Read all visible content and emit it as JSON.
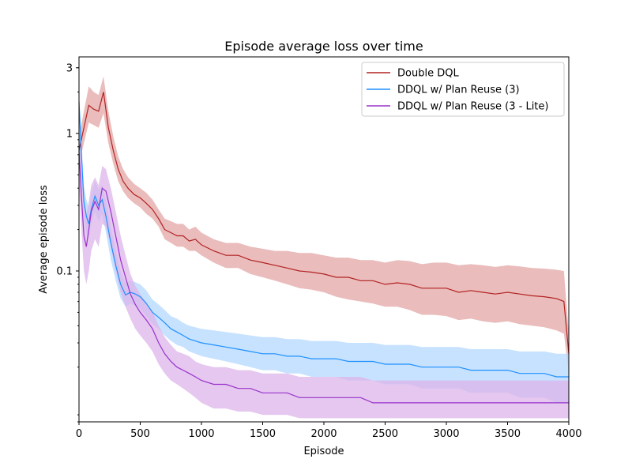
{
  "chart_data": {
    "type": "line",
    "title": "Episode average loss over time",
    "xlabel": "Episode",
    "ylabel": "Average episode loss",
    "xlim": [
      0,
      4000
    ],
    "ylim": [
      0.008,
      3.6
    ],
    "yscale": "log",
    "xticks": [
      0,
      500,
      1000,
      1500,
      2000,
      2500,
      3000,
      3500,
      4000
    ],
    "yticks": [
      {
        "value": 0.1,
        "label": "0.1"
      },
      {
        "value": 1,
        "label": "1"
      },
      {
        "value": 3,
        "label": "3"
      }
    ],
    "grid": false,
    "legend_position": "top-right",
    "series": [
      {
        "name": "Double DQL",
        "color": "#b22222",
        "band_color": "#e3a5a5",
        "x": [
          0,
          40,
          80,
          120,
          160,
          200,
          240,
          280,
          320,
          360,
          400,
          450,
          500,
          550,
          600,
          650,
          700,
          750,
          800,
          850,
          900,
          950,
          1000,
          1100,
          1200,
          1300,
          1400,
          1500,
          1600,
          1700,
          1800,
          1900,
          2000,
          2100,
          2200,
          2300,
          2400,
          2500,
          2600,
          2700,
          2800,
          2900,
          3000,
          3100,
          3200,
          3300,
          3400,
          3500,
          3600,
          3700,
          3800,
          3900,
          3960,
          4000
        ],
        "y": [
          0.75,
          1.1,
          1.6,
          1.5,
          1.45,
          2.0,
          1.1,
          0.75,
          0.55,
          0.45,
          0.4,
          0.36,
          0.34,
          0.31,
          0.28,
          0.24,
          0.2,
          0.19,
          0.18,
          0.18,
          0.165,
          0.17,
          0.155,
          0.14,
          0.13,
          0.13,
          0.12,
          0.115,
          0.11,
          0.105,
          0.1,
          0.098,
          0.095,
          0.09,
          0.09,
          0.085,
          0.085,
          0.08,
          0.082,
          0.08,
          0.075,
          0.075,
          0.075,
          0.07,
          0.072,
          0.07,
          0.068,
          0.07,
          0.068,
          0.066,
          0.065,
          0.063,
          0.06,
          0.025
        ],
        "low": [
          0.6,
          0.85,
          1.2,
          1.15,
          1.1,
          1.4,
          0.85,
          0.6,
          0.45,
          0.38,
          0.34,
          0.31,
          0.29,
          0.26,
          0.24,
          0.21,
          0.17,
          0.16,
          0.15,
          0.15,
          0.14,
          0.14,
          0.13,
          0.115,
          0.105,
          0.105,
          0.095,
          0.09,
          0.085,
          0.08,
          0.075,
          0.073,
          0.07,
          0.065,
          0.062,
          0.06,
          0.058,
          0.055,
          0.055,
          0.052,
          0.048,
          0.048,
          0.047,
          0.044,
          0.045,
          0.043,
          0.042,
          0.043,
          0.041,
          0.04,
          0.039,
          0.037,
          0.035,
          0.018
        ],
        "high": [
          0.95,
          1.45,
          2.2,
          2.0,
          1.9,
          2.6,
          1.45,
          0.95,
          0.68,
          0.55,
          0.48,
          0.43,
          0.4,
          0.37,
          0.33,
          0.28,
          0.24,
          0.23,
          0.22,
          0.22,
          0.2,
          0.21,
          0.19,
          0.17,
          0.16,
          0.16,
          0.15,
          0.145,
          0.14,
          0.14,
          0.135,
          0.135,
          0.13,
          0.125,
          0.125,
          0.12,
          0.12,
          0.115,
          0.12,
          0.118,
          0.112,
          0.115,
          0.115,
          0.11,
          0.112,
          0.11,
          0.107,
          0.11,
          0.108,
          0.105,
          0.104,
          0.102,
          0.1,
          0.035
        ]
      },
      {
        "name": "DDQL w/ Plan Reuse (3)",
        "color": "#1e90ff",
        "band_color": "#b4d8ff",
        "x": [
          0,
          20,
          40,
          60,
          80,
          100,
          130,
          160,
          190,
          220,
          260,
          300,
          340,
          380,
          420,
          460,
          500,
          550,
          600,
          650,
          700,
          750,
          800,
          850,
          900,
          950,
          1000,
          1100,
          1200,
          1300,
          1400,
          1500,
          1600,
          1700,
          1800,
          1900,
          2000,
          2100,
          2200,
          2300,
          2400,
          2500,
          2600,
          2700,
          2800,
          2900,
          3000,
          3100,
          3200,
          3300,
          3400,
          3500,
          3600,
          3700,
          3800,
          3900,
          4000
        ],
        "y": [
          1.7,
          0.7,
          0.32,
          0.25,
          0.22,
          0.28,
          0.35,
          0.3,
          0.33,
          0.25,
          0.16,
          0.11,
          0.08,
          0.067,
          0.07,
          0.068,
          0.065,
          0.058,
          0.05,
          0.046,
          0.042,
          0.038,
          0.036,
          0.034,
          0.032,
          0.031,
          0.03,
          0.029,
          0.028,
          0.027,
          0.026,
          0.025,
          0.025,
          0.024,
          0.024,
          0.023,
          0.023,
          0.023,
          0.022,
          0.022,
          0.022,
          0.021,
          0.021,
          0.021,
          0.02,
          0.02,
          0.02,
          0.02,
          0.019,
          0.019,
          0.019,
          0.019,
          0.018,
          0.018,
          0.018,
          0.017,
          0.017
        ],
        "low": [
          1.2,
          0.5,
          0.24,
          0.19,
          0.17,
          0.22,
          0.27,
          0.23,
          0.26,
          0.19,
          0.12,
          0.085,
          0.063,
          0.055,
          0.058,
          0.056,
          0.053,
          0.047,
          0.041,
          0.038,
          0.034,
          0.031,
          0.029,
          0.028,
          0.026,
          0.025,
          0.024,
          0.023,
          0.022,
          0.021,
          0.02,
          0.019,
          0.019,
          0.018,
          0.018,
          0.017,
          0.017,
          0.017,
          0.016,
          0.016,
          0.016,
          0.015,
          0.015,
          0.015,
          0.014,
          0.014,
          0.014,
          0.014,
          0.013,
          0.013,
          0.013,
          0.013,
          0.012,
          0.012,
          0.012,
          0.011,
          0.011
        ],
        "high": [
          2.0,
          0.9,
          0.42,
          0.33,
          0.29,
          0.36,
          0.45,
          0.39,
          0.42,
          0.33,
          0.21,
          0.14,
          0.1,
          0.082,
          0.085,
          0.083,
          0.08,
          0.072,
          0.062,
          0.057,
          0.052,
          0.047,
          0.045,
          0.042,
          0.04,
          0.039,
          0.038,
          0.037,
          0.036,
          0.035,
          0.034,
          0.033,
          0.033,
          0.032,
          0.032,
          0.031,
          0.031,
          0.031,
          0.03,
          0.03,
          0.03,
          0.029,
          0.029,
          0.029,
          0.028,
          0.028,
          0.028,
          0.028,
          0.027,
          0.027,
          0.027,
          0.027,
          0.026,
          0.026,
          0.026,
          0.025,
          0.025
        ]
      },
      {
        "name": "DDQL w/ Plan Reuse (3 - Lite)",
        "color": "#9932cc",
        "band_color": "#dcb4ea",
        "x": [
          0,
          20,
          40,
          60,
          80,
          100,
          130,
          160,
          190,
          220,
          260,
          300,
          340,
          380,
          420,
          460,
          500,
          550,
          600,
          650,
          700,
          750,
          800,
          850,
          900,
          950,
          1000,
          1100,
          1200,
          1300,
          1400,
          1500,
          1600,
          1700,
          1800,
          1900,
          2000,
          2100,
          2200,
          2300,
          2400,
          2500,
          2600,
          2700,
          2800,
          2900,
          3000,
          3100,
          3200,
          3300,
          3400,
          3500,
          3600,
          3700,
          3800,
          3900,
          4000
        ],
        "y": [
          0.75,
          0.35,
          0.18,
          0.15,
          0.2,
          0.27,
          0.32,
          0.28,
          0.4,
          0.38,
          0.27,
          0.18,
          0.12,
          0.09,
          0.068,
          0.057,
          0.05,
          0.044,
          0.038,
          0.03,
          0.025,
          0.022,
          0.02,
          0.019,
          0.018,
          0.017,
          0.016,
          0.015,
          0.015,
          0.014,
          0.014,
          0.013,
          0.013,
          0.013,
          0.012,
          0.012,
          0.012,
          0.012,
          0.012,
          0.012,
          0.011,
          0.011,
          0.011,
          0.011,
          0.011,
          0.011,
          0.011,
          0.011,
          0.011,
          0.011,
          0.011,
          0.011,
          0.011,
          0.011,
          0.011,
          0.011,
          0.011
        ],
        "low": [
          0.45,
          0.2,
          0.1,
          0.08,
          0.1,
          0.14,
          0.17,
          0.15,
          0.22,
          0.21,
          0.15,
          0.1,
          0.07,
          0.055,
          0.045,
          0.038,
          0.034,
          0.03,
          0.026,
          0.021,
          0.018,
          0.016,
          0.015,
          0.014,
          0.013,
          0.012,
          0.011,
          0.01,
          0.01,
          0.0095,
          0.0095,
          0.009,
          0.009,
          0.009,
          0.0085,
          0.0085,
          0.0085,
          0.0085,
          0.0085,
          0.0085,
          0.0085,
          0.0085,
          0.0085,
          0.0085,
          0.0085,
          0.0085,
          0.0085,
          0.0085,
          0.0085,
          0.0085,
          0.0085,
          0.0085,
          0.0085,
          0.0085,
          0.0085,
          0.0085,
          0.0085
        ],
        "high": [
          1.1,
          0.55,
          0.3,
          0.26,
          0.32,
          0.42,
          0.48,
          0.42,
          0.58,
          0.55,
          0.4,
          0.27,
          0.18,
          0.13,
          0.095,
          0.078,
          0.068,
          0.059,
          0.051,
          0.04,
          0.033,
          0.029,
          0.026,
          0.025,
          0.024,
          0.022,
          0.021,
          0.02,
          0.02,
          0.019,
          0.019,
          0.018,
          0.018,
          0.018,
          0.017,
          0.017,
          0.017,
          0.017,
          0.017,
          0.017,
          0.016,
          0.016,
          0.016,
          0.016,
          0.016,
          0.016,
          0.016,
          0.016,
          0.016,
          0.016,
          0.016,
          0.016,
          0.016,
          0.016,
          0.016,
          0.016,
          0.016
        ]
      }
    ]
  }
}
